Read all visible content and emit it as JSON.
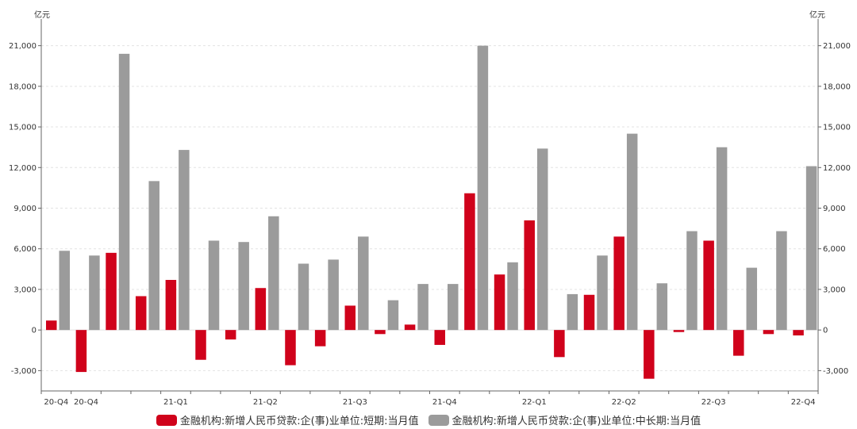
{
  "chart_data": {
    "type": "bar",
    "y_unit_left": "亿元",
    "y_unit_right": "亿元",
    "ylim": [
      -4500,
      22500
    ],
    "yticks": [
      -3000,
      0,
      3000,
      6000,
      9000,
      12000,
      15000,
      18000,
      21000
    ],
    "ytick_labels": [
      "-3,000",
      "0",
      "3,000",
      "6,000",
      "9,000",
      "12,000",
      "15,000",
      "18,000",
      "21,000"
    ],
    "x_labels": [
      "20-Q4",
      "20-Q4",
      "21-Q1",
      "21-Q2",
      "21-Q3",
      "21-Q4",
      "22-Q1",
      "22-Q2",
      "22-Q3",
      "22-Q4"
    ],
    "grid": true,
    "legend_position": "bottom",
    "series": [
      {
        "name": "金融机构:新增人民币贷款:企(事)业单位:短期:当月值",
        "color": "#d0021b",
        "values": [
          700,
          -3100,
          5700,
          2500,
          3700,
          -2200,
          -700,
          3100,
          -2600,
          -1200,
          1800,
          -300,
          400,
          -1100,
          10100,
          4100,
          8100,
          -2000,
          2600,
          6900,
          -3600,
          -150,
          6600,
          -1900,
          -300,
          -400
        ]
      },
      {
        "name": "金融机构:新增人民币贷款:企(事)业单位:中长期:当月值",
        "color": "#9b9b9b",
        "values": [
          5850,
          5500,
          20400,
          11000,
          13300,
          6600,
          6500,
          8400,
          4900,
          5200,
          6900,
          2200,
          3400,
          3400,
          21000,
          5000,
          13400,
          2650,
          5500,
          14500,
          3450,
          7300,
          13500,
          4600,
          7300,
          12100
        ]
      }
    ]
  }
}
